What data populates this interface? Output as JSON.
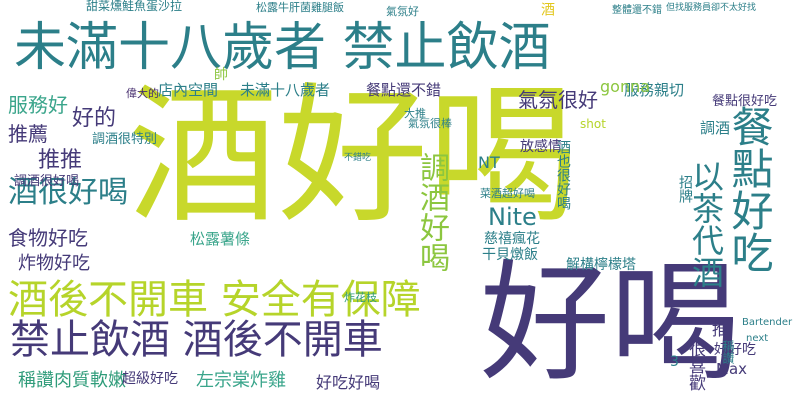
{
  "palette": {
    "lime": "#c8d82b",
    "navy": "#453a78",
    "teal": "#2c7f89",
    "green": "#2f9c7a",
    "aqua": "#3aa58b",
    "light_green": "#8cc63f",
    "olive": "#b6d42a",
    "yellow": "#e2c61a",
    "purple": "#472f6f",
    "dark_teal": "#1f6f7a"
  },
  "words": [
    {
      "text": "酒好喝",
      "color": "lime"
    },
    {
      "text": "好喝",
      "color": "navy"
    },
    {
      "text": "未滿十八歲者 禁止飲酒",
      "color": "teal"
    },
    {
      "text": "酒後不開車 安全有保障",
      "color": "olive"
    },
    {
      "text": "禁止飲酒 酒後不開車",
      "color": "navy"
    },
    {
      "text": "餐點好吃",
      "color": "teal"
    },
    {
      "text": "調酒好喝",
      "color": "light_green"
    },
    {
      "text": "以茶代酒",
      "color": "teal"
    },
    {
      "text": "酒很好喝",
      "color": "teal"
    },
    {
      "text": "Nite",
      "color": "teal"
    },
    {
      "text": "氣氛很好",
      "color": "navy"
    },
    {
      "text": "推推",
      "color": "navy"
    },
    {
      "text": "推薦",
      "color": "navy"
    },
    {
      "text": "服務好",
      "color": "aqua"
    },
    {
      "text": "好的",
      "color": "navy"
    },
    {
      "text": "食物好吃",
      "color": "navy"
    },
    {
      "text": "炸物好吃",
      "color": "navy"
    },
    {
      "text": "稱讚肉質軟嫩",
      "color": "green"
    },
    {
      "text": "左宗棠炸雞",
      "color": "aqua"
    },
    {
      "text": "好吃好喝",
      "color": "navy"
    },
    {
      "text": "超級好吃",
      "color": "navy"
    },
    {
      "text": "店內空間",
      "color": "teal"
    },
    {
      "text": "未滿十八歲者",
      "color": "teal"
    },
    {
      "text": "餐點還不錯",
      "color": "navy"
    },
    {
      "text": "服務親切",
      "color": "teal"
    },
    {
      "text": "餐點很好吃",
      "color": "navy"
    },
    {
      "text": "gonna",
      "color": "light_green"
    },
    {
      "text": "調酒很好喝",
      "color": "navy"
    },
    {
      "text": "調酒很特別",
      "color": "teal"
    },
    {
      "text": "放感情",
      "color": "navy"
    },
    {
      "text": "酒也很好喝",
      "color": "teal"
    },
    {
      "text": "解構檸檬塔",
      "color": "teal"
    },
    {
      "text": "干貝燉飯",
      "color": "teal"
    },
    {
      "text": "慈禧瘋花",
      "color": "teal"
    },
    {
      "text": "松露薯條",
      "color": "aqua"
    },
    {
      "text": "推",
      "color": "navy"
    },
    {
      "text": "好好吃",
      "color": "navy"
    },
    {
      "text": "Max",
      "color": "navy"
    },
    {
      "text": "很喜歡",
      "color": "navy"
    },
    {
      "text": "Bartender",
      "color": "teal"
    },
    {
      "text": "next",
      "color": "teal"
    },
    {
      "text": "招牌",
      "color": "teal"
    },
    {
      "text": "稱讚",
      "color": "teal"
    },
    {
      "text": "酒",
      "color": "yellow"
    },
    {
      "text": "shot",
      "color": "olive"
    },
    {
      "text": "NT",
      "color": "teal"
    },
    {
      "text": "菜酒超好喝",
      "color": "teal"
    },
    {
      "text": "氣氛很棒",
      "color": "teal"
    },
    {
      "text": "炸花枝",
      "color": "green"
    },
    {
      "text": "調酒",
      "color": "teal"
    },
    {
      "text": "3",
      "color": "teal"
    },
    {
      "text": "帥",
      "color": "light_green"
    },
    {
      "text": "甜菜燻鮭魚蛋沙拉",
      "color": "teal"
    },
    {
      "text": "松露牛肝菌雞腿飯",
      "color": "teal"
    },
    {
      "text": "氣氛好",
      "color": "teal"
    },
    {
      "text": "大推",
      "color": "teal"
    },
    {
      "text": "偉大的",
      "color": "purple"
    },
    {
      "text": "不錯吃",
      "color": "teal"
    },
    {
      "text": "整體還不錯",
      "color": "teal"
    },
    {
      "text": "但找服務員卻不太好找",
      "color": "teal"
    }
  ]
}
